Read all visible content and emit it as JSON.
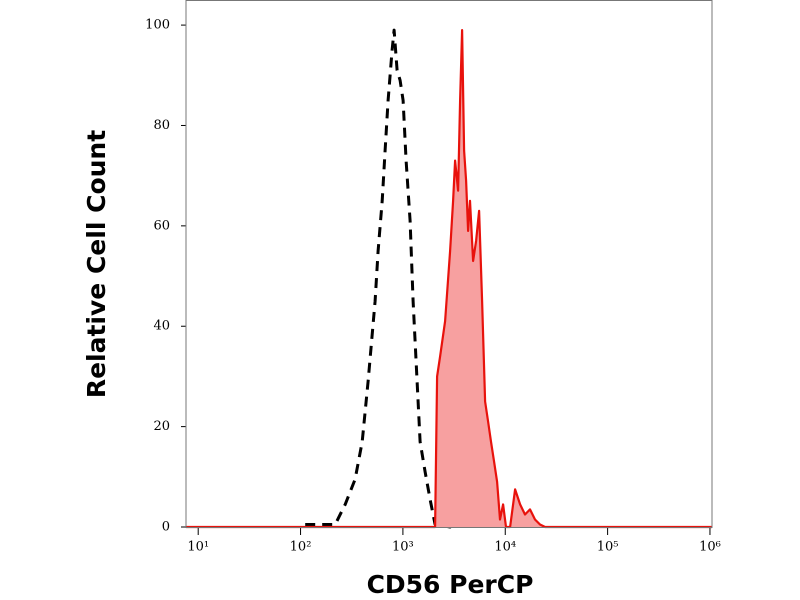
{
  "chart_data": {
    "type": "histogram-line",
    "xlabel": "CD56 PerCP",
    "ylabel": "Relative Cell Count",
    "xscale": "log",
    "xlim": [
      7.6,
      1047000
    ],
    "ylim": [
      0,
      105
    ],
    "xticks": [
      {
        "value": 10,
        "label": "10¹"
      },
      {
        "value": 100,
        "label": "10²"
      },
      {
        "value": 1000,
        "label": "10³"
      },
      {
        "value": 10000,
        "label": "10⁴"
      },
      {
        "value": 100000,
        "label": "10⁵"
      },
      {
        "value": 1000000,
        "label": "10⁶"
      }
    ],
    "yticks": [
      0,
      20,
      40,
      60,
      80,
      100
    ],
    "series": [
      {
        "color": "#000000",
        "dashed": true,
        "x": [
          111,
          218,
          273,
          341,
          400,
          457,
          535,
          573,
          627,
          670,
          717,
          785,
          820,
          877,
          939,
          1004,
          1074,
          1175,
          1259,
          1376,
          1472,
          1648,
          1845,
          2063,
          2890,
          3237
        ],
        "values": [
          0.5,
          0.5,
          4.5,
          9.5,
          17,
          29,
          45,
          55,
          65,
          75,
          85,
          95,
          99,
          91,
          89,
          85,
          73,
          61,
          45,
          29,
          17,
          11,
          5.5,
          0.5,
          0,
          0.7
        ]
      },
      {
        "color": "#e8120c",
        "dashed": false,
        "fill": "#f7a0a0",
        "x": [
          7.6,
          2063,
          2158,
          2308,
          2582,
          2890,
          3091,
          3237,
          3459,
          3622,
          3785,
          3963,
          4140,
          4335,
          4529,
          4853,
          5188,
          5548,
          5934,
          6353,
          6792,
          7262,
          7780,
          8318,
          8894,
          9521,
          10180,
          11140,
          12470,
          13960,
          15600,
          17460,
          19540,
          21870,
          24490,
          1047000
        ],
        "values": [
          0,
          0,
          30,
          34,
          41,
          55,
          65,
          73,
          67,
          85,
          99,
          75,
          69,
          59,
          65,
          53,
          57,
          63,
          45,
          25,
          21,
          17,
          13,
          9,
          1.5,
          4.5,
          0,
          0,
          7.5,
          4.5,
          2.5,
          3.5,
          1.5,
          0.5,
          0,
          0
        ]
      }
    ]
  }
}
